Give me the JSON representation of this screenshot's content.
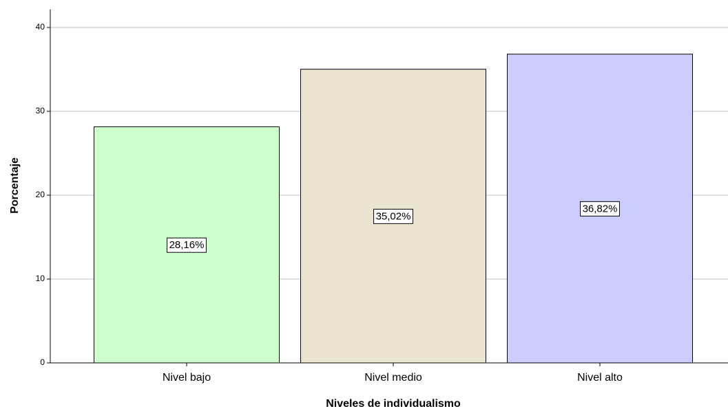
{
  "chart_data": {
    "type": "bar",
    "x_label": "Niveles de individualismo",
    "y_label": "Porcentaje",
    "categories": [
      "Nivel bajo",
      "Nivel medio",
      "Nivel alto"
    ],
    "values": [
      28.16,
      35.02,
      36.82
    ],
    "value_labels": [
      "28,16%",
      "35,02%",
      "36,82%"
    ],
    "colors": [
      "#ccffcc",
      "#ebe4cf",
      "#ccccff"
    ],
    "ylim": [
      0,
      42
    ],
    "yticks": [
      0,
      10,
      20,
      30,
      40
    ],
    "grid": true
  }
}
